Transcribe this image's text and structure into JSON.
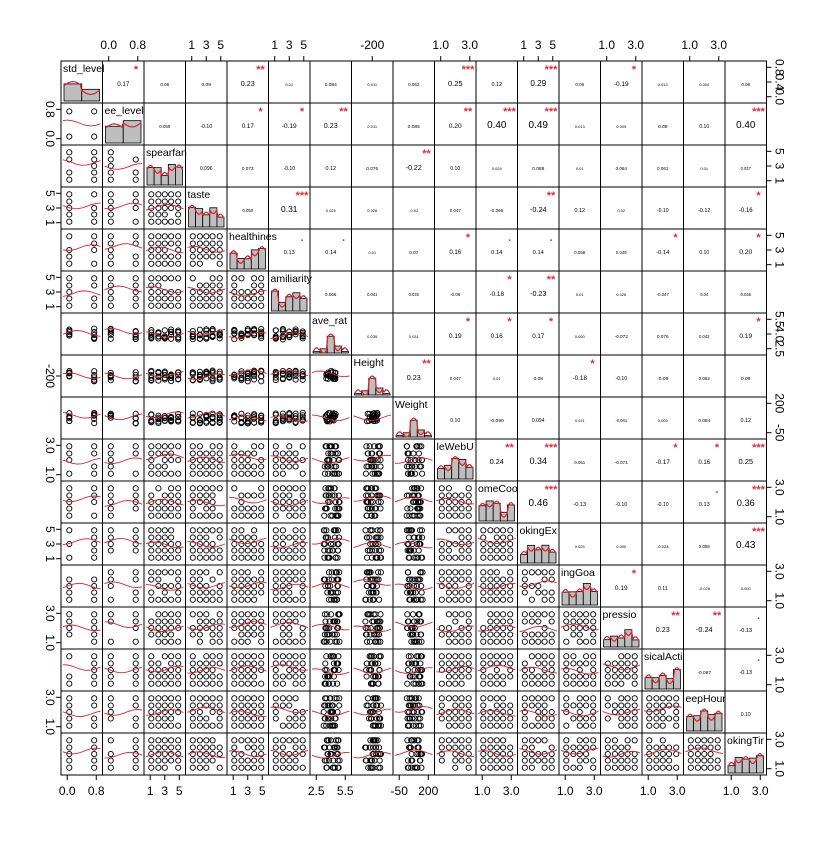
{
  "chart_data": {
    "type": "scatter-matrix",
    "title": "",
    "variables": [
      "std_level",
      "ee_level",
      "spearfan",
      "taste",
      "healthines",
      "amiliarity",
      "ave_rat",
      "Height",
      "Weight",
      "leWebU",
      "omeCoo",
      "okingEx",
      "ingGoa",
      "pressio",
      "sicalActi",
      "eepHour",
      "okingTir"
    ],
    "variable_types": [
      "binary",
      "binary",
      "ordinal",
      "ordinal",
      "ordinal",
      "ordinal",
      "continuous",
      "continuous",
      "continuous",
      "ordinal",
      "ordinal",
      "ordinal",
      "ordinal",
      "ordinal",
      "ordinal",
      "ordinal",
      "ordinal"
    ],
    "axis_ranges": [
      [
        0,
        1
      ],
      [
        0,
        1
      ],
      [
        1,
        5
      ],
      [
        1,
        5
      ],
      [
        1,
        5
      ],
      [
        1,
        5
      ],
      [
        2.5,
        5.5
      ],
      [
        -220,
        220
      ],
      [
        -60,
        220
      ],
      [
        1,
        3.5
      ],
      [
        1,
        3
      ],
      [
        1,
        5
      ],
      [
        1,
        3
      ],
      [
        1,
        3
      ],
      [
        1,
        3
      ],
      [
        1,
        3.5
      ],
      [
        1,
        3
      ]
    ],
    "top_ticks": [
      {
        "col": 1,
        "labels": [
          "0.0",
          "0.8"
        ]
      },
      {
        "col": 3,
        "labels": [
          "1",
          "3",
          "5"
        ]
      },
      {
        "col": 5,
        "labels": [
          "1",
          "3",
          "5"
        ]
      },
      {
        "col": 7,
        "labels": [
          "-200"
        ]
      },
      {
        "col": 9,
        "labels": [
          "1.0",
          "3.0"
        ]
      },
      {
        "col": 11,
        "labels": [
          "1",
          "3",
          "5"
        ]
      },
      {
        "col": 13,
        "labels": [
          "1.0",
          "3.0"
        ]
      },
      {
        "col": 15,
        "labels": [
          "1.0",
          "3.0"
        ]
      }
    ],
    "bottom_ticks": [
      {
        "col": 0,
        "labels": [
          "0.0",
          "0.8"
        ]
      },
      {
        "col": 2,
        "labels": [
          "1",
          "3",
          "5"
        ]
      },
      {
        "col": 4,
        "labels": [
          "1",
          "3",
          "5"
        ]
      },
      {
        "col": 6,
        "labels": [
          "2.5",
          "5.5"
        ]
      },
      {
        "col": 8,
        "labels": [
          "-50",
          "200"
        ]
      },
      {
        "col": 10,
        "labels": [
          "1.0",
          "3.0"
        ]
      },
      {
        "col": 12,
        "labels": [
          "1.0",
          "3.0"
        ]
      },
      {
        "col": 14,
        "labels": [
          "1.0",
          "3.0"
        ]
      },
      {
        "col": 16,
        "labels": [
          "1.0",
          "3.0"
        ]
      }
    ],
    "left_ticks": [
      {
        "row": 1,
        "labels": [
          "0.8",
          "0.0"
        ]
      },
      {
        "row": 3,
        "labels": [
          "5",
          "3",
          "1"
        ]
      },
      {
        "row": 5,
        "labels": [
          "5",
          "3",
          "1"
        ]
      },
      {
        "row": 7,
        "labels": [
          "-200"
        ]
      },
      {
        "row": 9,
        "labels": [
          "3.0",
          "1.0"
        ]
      },
      {
        "row": 11,
        "labels": [
          "5",
          "3",
          "1"
        ]
      },
      {
        "row": 13,
        "labels": [
          "3.0",
          "1.0"
        ]
      },
      {
        "row": 15,
        "labels": [
          "3.0",
          "1.0"
        ]
      }
    ],
    "right_ticks": [
      {
        "row": 0,
        "labels": [
          "0.8",
          "0.4",
          "0.0"
        ]
      },
      {
        "row": 2,
        "labels": [
          "5",
          "3",
          "1"
        ]
      },
      {
        "row": 4,
        "labels": [
          "5",
          "3",
          "1"
        ]
      },
      {
        "row": 6,
        "labels": [
          "5.5",
          "4.0",
          "2.5"
        ]
      },
      {
        "row": 8,
        "labels": [
          "200",
          "-50"
        ]
      },
      {
        "row": 10,
        "labels": [
          "3.0",
          "1.0"
        ]
      },
      {
        "row": 12,
        "labels": [
          "3.0",
          "1.0"
        ]
      },
      {
        "row": 14,
        "labels": [
          "3.0",
          "1.0"
        ]
      },
      {
        "row": 16,
        "labels": [
          "3.0",
          "1.0"
        ]
      }
    ],
    "correlations": [
      {
        "r": 0,
        "c": 1,
        "v": "0.17",
        "s": "*"
      },
      {
        "r": 0,
        "c": 2,
        "v": "0.06",
        "s": ""
      },
      {
        "r": 0,
        "c": 3,
        "v": "0.09",
        "s": ""
      },
      {
        "r": 0,
        "c": 4,
        "v": "0.23",
        "s": "**"
      },
      {
        "r": 0,
        "c": 5,
        "v": "0.01",
        "s": ""
      },
      {
        "r": 0,
        "c": 6,
        "v": "0.084",
        "s": ""
      },
      {
        "r": 0,
        "c": 7,
        "v": "0.011",
        "s": ""
      },
      {
        "r": 0,
        "c": 8,
        "v": "0.062",
        "s": ""
      },
      {
        "r": 0,
        "c": 9,
        "v": "0.25",
        "s": "***"
      },
      {
        "r": 0,
        "c": 10,
        "v": "0.12",
        "s": ""
      },
      {
        "r": 0,
        "c": 11,
        "v": "0.29",
        "s": "***"
      },
      {
        "r": 0,
        "c": 12,
        "v": "0.06",
        "s": ""
      },
      {
        "r": 0,
        "c": 13,
        "v": "-0.19",
        "s": "*"
      },
      {
        "r": 0,
        "c": 14,
        "v": "0.013",
        "s": ""
      },
      {
        "r": 0,
        "c": 15,
        "v": "0.000",
        "s": ""
      },
      {
        "r": 0,
        "c": 16,
        "v": "0.06",
        "s": ""
      },
      {
        "r": 1,
        "c": 2,
        "v": "0.059",
        "s": ""
      },
      {
        "r": 1,
        "c": 3,
        "v": "-0.10",
        "s": ""
      },
      {
        "r": 1,
        "c": 4,
        "v": "0.17",
        "s": "*"
      },
      {
        "r": 1,
        "c": 5,
        "v": "-0.19",
        "s": "*"
      },
      {
        "r": 1,
        "c": 6,
        "v": "0.23",
        "s": "**"
      },
      {
        "r": 1,
        "c": 7,
        "v": "0.011",
        "s": ""
      },
      {
        "r": 1,
        "c": 8,
        "v": "0.085",
        "s": ""
      },
      {
        "r": 1,
        "c": 9,
        "v": "0.20",
        "s": "**"
      },
      {
        "r": 1,
        "c": 10,
        "v": "0.40",
        "s": "***"
      },
      {
        "r": 1,
        "c": 11,
        "v": "0.49",
        "s": "***"
      },
      {
        "r": 1,
        "c": 12,
        "v": "0.013",
        "s": ""
      },
      {
        "r": 1,
        "c": 13,
        "v": "0.009",
        "s": ""
      },
      {
        "r": 1,
        "c": 14,
        "v": "0.09",
        "s": ""
      },
      {
        "r": 1,
        "c": 15,
        "v": "0.10",
        "s": ""
      },
      {
        "r": 1,
        "c": 16,
        "v": "0.40",
        "s": "***"
      },
      {
        "r": 2,
        "c": 3,
        "v": "0.096",
        "s": ""
      },
      {
        "r": 2,
        "c": 4,
        "v": "0.073",
        "s": ""
      },
      {
        "r": 2,
        "c": 5,
        "v": "-0.10",
        "s": ""
      },
      {
        "r": 2,
        "c": 6,
        "v": "0.12",
        "s": ""
      },
      {
        "r": 2,
        "c": 7,
        "v": "0.076",
        "s": ""
      },
      {
        "r": 2,
        "c": 8,
        "v": "-0.22",
        "s": "**"
      },
      {
        "r": 2,
        "c": 9,
        "v": "0.10",
        "s": ""
      },
      {
        "r": 2,
        "c": 10,
        "v": "0.029",
        "s": ""
      },
      {
        "r": 2,
        "c": 11,
        "v": "0.088",
        "s": ""
      },
      {
        "r": 2,
        "c": 12,
        "v": "0.01",
        "s": ""
      },
      {
        "r": 2,
        "c": 13,
        "v": "0.064",
        "s": ""
      },
      {
        "r": 2,
        "c": 14,
        "v": "0.061",
        "s": ""
      },
      {
        "r": 2,
        "c": 15,
        "v": "0.01",
        "s": ""
      },
      {
        "r": 2,
        "c": 16,
        "v": "0.037",
        "s": ""
      },
      {
        "r": 3,
        "c": 4,
        "v": "0.050",
        "s": ""
      },
      {
        "r": 3,
        "c": 5,
        "v": "0.31",
        "s": "***"
      },
      {
        "r": 3,
        "c": 6,
        "v": "0.025",
        "s": ""
      },
      {
        "r": 3,
        "c": 7,
        "v": "0.026",
        "s": ""
      },
      {
        "r": 3,
        "c": 8,
        "v": "-0.02",
        "s": ""
      },
      {
        "r": 3,
        "c": 9,
        "v": "0.047",
        "s": ""
      },
      {
        "r": 3,
        "c": 10,
        "v": "-0.066",
        "s": ""
      },
      {
        "r": 3,
        "c": 11,
        "v": "-0.24",
        "s": "**"
      },
      {
        "r": 3,
        "c": 12,
        "v": "0.12",
        "s": ""
      },
      {
        "r": 3,
        "c": 13,
        "v": "0.02",
        "s": ""
      },
      {
        "r": 3,
        "c": 14,
        "v": "-0.10",
        "s": ""
      },
      {
        "r": 3,
        "c": 15,
        "v": "-0.12",
        "s": ""
      },
      {
        "r": 3,
        "c": 16,
        "v": "-0.16",
        "s": "*"
      },
      {
        "r": 4,
        "c": 5,
        "v": "0.13",
        "s": "."
      },
      {
        "r": 4,
        "c": 6,
        "v": "0.14",
        "s": "."
      },
      {
        "r": 4,
        "c": 7,
        "v": "0.01",
        "s": ""
      },
      {
        "r": 4,
        "c": 8,
        "v": "0.07",
        "s": ""
      },
      {
        "r": 4,
        "c": 9,
        "v": "0.16",
        "s": "*"
      },
      {
        "r": 4,
        "c": 10,
        "v": "0.14",
        "s": "."
      },
      {
        "r": 4,
        "c": 11,
        "v": "0.14",
        "s": "."
      },
      {
        "r": 4,
        "c": 12,
        "v": "0.056",
        "s": ""
      },
      {
        "r": 4,
        "c": 13,
        "v": "0.049",
        "s": ""
      },
      {
        "r": 4,
        "c": 14,
        "v": "-0.14",
        "s": "*"
      },
      {
        "r": 4,
        "c": 15,
        "v": "0.10",
        "s": ""
      },
      {
        "r": 4,
        "c": 16,
        "v": "0.20",
        "s": "*"
      },
      {
        "r": 5,
        "c": 6,
        "v": "0.066",
        "s": ""
      },
      {
        "r": 5,
        "c": 7,
        "v": "0.041",
        "s": ""
      },
      {
        "r": 5,
        "c": 8,
        "v": "0.036",
        "s": ""
      },
      {
        "r": 5,
        "c": 9,
        "v": "-0.06",
        "s": ""
      },
      {
        "r": 5,
        "c": 10,
        "v": "-0.18",
        "s": "*"
      },
      {
        "r": 5,
        "c": 11,
        "v": "-0.23",
        "s": "**"
      },
      {
        "r": 5,
        "c": 12,
        "v": "0.01",
        "s": ""
      },
      {
        "r": 5,
        "c": 13,
        "v": "0.026",
        "s": ""
      },
      {
        "r": 5,
        "c": 14,
        "v": "-0.047",
        "s": ""
      },
      {
        "r": 5,
        "c": 15,
        "v": "0.04",
        "s": ""
      },
      {
        "r": 5,
        "c": 16,
        "v": "0.046",
        "s": ""
      },
      {
        "r": 6,
        "c": 7,
        "v": "0.035",
        "s": ""
      },
      {
        "r": 6,
        "c": 8,
        "v": "0.031",
        "s": ""
      },
      {
        "r": 6,
        "c": 9,
        "v": "0.19",
        "s": "*"
      },
      {
        "r": 6,
        "c": 10,
        "v": "0.16",
        "s": "*"
      },
      {
        "r": 6,
        "c": 11,
        "v": "0.17",
        "s": "*"
      },
      {
        "r": 6,
        "c": 12,
        "v": "0.000",
        "s": ""
      },
      {
        "r": 6,
        "c": 13,
        "v": "-0.072",
        "s": ""
      },
      {
        "r": 6,
        "c": 14,
        "v": "0.076",
        "s": ""
      },
      {
        "r": 6,
        "c": 15,
        "v": "0.042",
        "s": ""
      },
      {
        "r": 6,
        "c": 16,
        "v": "0.19",
        "s": "*"
      },
      {
        "r": 7,
        "c": 8,
        "v": "0.23",
        "s": "**"
      },
      {
        "r": 7,
        "c": 9,
        "v": "0.047",
        "s": ""
      },
      {
        "r": 7,
        "c": 10,
        "v": "0.01",
        "s": ""
      },
      {
        "r": 7,
        "c": 11,
        "v": "0.08",
        "s": ""
      },
      {
        "r": 7,
        "c": 12,
        "v": "-0.18",
        "s": "*"
      },
      {
        "r": 7,
        "c": 13,
        "v": "-0.10",
        "s": ""
      },
      {
        "r": 7,
        "c": 14,
        "v": "-0.09",
        "s": ""
      },
      {
        "r": 7,
        "c": 15,
        "v": "0.062",
        "s": ""
      },
      {
        "r": 7,
        "c": 16,
        "v": "0.09",
        "s": ""
      },
      {
        "r": 8,
        "c": 9,
        "v": "0.10",
        "s": ""
      },
      {
        "r": 8,
        "c": 10,
        "v": "-0.090",
        "s": ""
      },
      {
        "r": 8,
        "c": 11,
        "v": "0.094",
        "s": ""
      },
      {
        "r": 8,
        "c": 12,
        "v": "0.031",
        "s": ""
      },
      {
        "r": 8,
        "c": 13,
        "v": "-0.041",
        "s": ""
      },
      {
        "r": 8,
        "c": 14,
        "v": "0.009",
        "s": ""
      },
      {
        "r": 8,
        "c": 15,
        "v": "0.084",
        "s": ""
      },
      {
        "r": 8,
        "c": 16,
        "v": "0.12",
        "s": ""
      },
      {
        "r": 9,
        "c": 10,
        "v": "0.24",
        "s": "**"
      },
      {
        "r": 9,
        "c": 11,
        "v": "0.34",
        "s": "***"
      },
      {
        "r": 9,
        "c": 12,
        "v": "0.051",
        "s": ""
      },
      {
        "r": 9,
        "c": 13,
        "v": "-0.071",
        "s": ""
      },
      {
        "r": 9,
        "c": 14,
        "v": "-0.17",
        "s": "*"
      },
      {
        "r": 9,
        "c": 15,
        "v": "0.16",
        "s": "*"
      },
      {
        "r": 9,
        "c": 16,
        "v": "0.25",
        "s": "***"
      },
      {
        "r": 10,
        "c": 11,
        "v": "0.46",
        "s": "***"
      },
      {
        "r": 10,
        "c": 12,
        "v": "-0.13",
        "s": ""
      },
      {
        "r": 10,
        "c": 13,
        "v": "-0.10",
        "s": ""
      },
      {
        "r": 10,
        "c": 14,
        "v": "-0.10",
        "s": ""
      },
      {
        "r": 10,
        "c": 15,
        "v": "0.13",
        "s": "."
      },
      {
        "r": 10,
        "c": 16,
        "v": "0.36",
        "s": "***"
      },
      {
        "r": 11,
        "c": 12,
        "v": "0.025",
        "s": ""
      },
      {
        "r": 11,
        "c": 13,
        "v": "0.000",
        "s": ""
      },
      {
        "r": 11,
        "c": 14,
        "v": "-0.028",
        "s": ""
      },
      {
        "r": 11,
        "c": 15,
        "v": "0.058",
        "s": ""
      },
      {
        "r": 11,
        "c": 16,
        "v": "0.43",
        "s": "***"
      },
      {
        "r": 12,
        "c": 13,
        "v": "0.19",
        "s": "*"
      },
      {
        "r": 12,
        "c": 14,
        "v": "0.11",
        "s": ""
      },
      {
        "r": 12,
        "c": 15,
        "v": "-0.028",
        "s": ""
      },
      {
        "r": 12,
        "c": 16,
        "v": "0.000",
        "s": ""
      },
      {
        "r": 13,
        "c": 14,
        "v": "0.23",
        "s": "**"
      },
      {
        "r": 13,
        "c": 15,
        "v": "-0.24",
        "s": "**"
      },
      {
        "r": 13,
        "c": 16,
        "v": "-0.13",
        "s": "."
      },
      {
        "r": 14,
        "c": 15,
        "v": "-0.087",
        "s": ""
      },
      {
        "r": 14,
        "c": 16,
        "v": "-0.13",
        "s": "."
      },
      {
        "r": 15,
        "c": 16,
        "v": "0.10",
        "s": ""
      }
    ],
    "colors": {
      "histogram": "#bebebe",
      "density": "#e0202a",
      "points": "#000000",
      "smooth": "#e0202a",
      "stars": "#d9303d"
    },
    "grid": false,
    "legend": "none"
  }
}
